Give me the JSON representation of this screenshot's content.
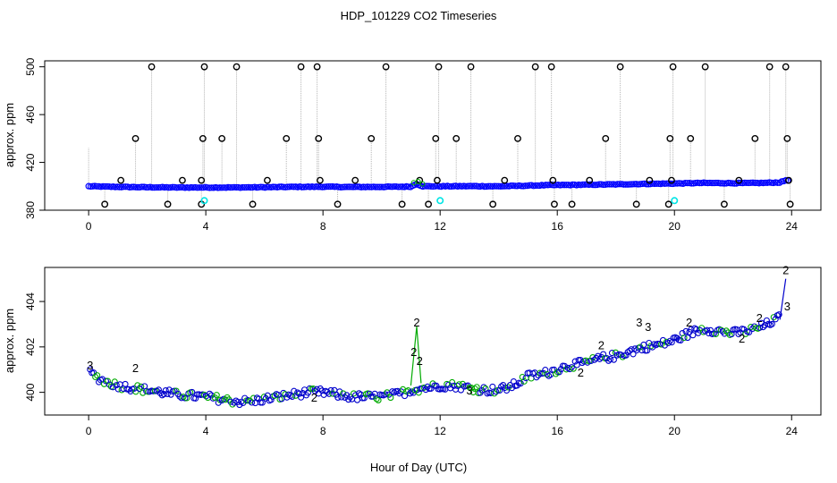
{
  "chart_data": [
    {
      "type": "scatter",
      "title": "HDP_101229  CO2 Timeseries",
      "xlabel": "",
      "ylabel": "approx. ppm",
      "xlim": [
        -1.5,
        25
      ],
      "ylim": [
        380,
        505
      ],
      "x_ticks": [
        0,
        4,
        8,
        12,
        16,
        20,
        24
      ],
      "x_tick_labels": [
        "0",
        "4",
        "8",
        "12",
        "16",
        "20",
        "24"
      ],
      "y_ticks": [
        380,
        420,
        460,
        500
      ],
      "y_tick_labels": [
        "380",
        "420",
        "460",
        "500"
      ],
      "baseline": [
        [
          0,
          400
        ],
        [
          1,
          399.5
        ],
        [
          2,
          399.2
        ],
        [
          3,
          399
        ],
        [
          4,
          399
        ],
        [
          5,
          399
        ],
        [
          6,
          399.2
        ],
        [
          7,
          399.5
        ],
        [
          8,
          399.6
        ],
        [
          9,
          399.4
        ],
        [
          10,
          399.5
        ],
        [
          11,
          399.7
        ],
        [
          11.2,
          402
        ],
        [
          11.4,
          400
        ],
        [
          12,
          400
        ],
        [
          13,
          400.1
        ],
        [
          14,
          400
        ],
        [
          15,
          400.5
        ],
        [
          15.8,
          401
        ],
        [
          16,
          401
        ],
        [
          17,
          401.3
        ],
        [
          18,
          401.6
        ],
        [
          19,
          402
        ],
        [
          20,
          402.3
        ],
        [
          21,
          402.8
        ],
        [
          22,
          402.6
        ],
        [
          23,
          402.8
        ],
        [
          23.6,
          403.2
        ],
        [
          23.8,
          405
        ]
      ],
      "spikes": [
        [
          1.1,
          405
        ],
        [
          1.6,
          440
        ],
        [
          2.15,
          500
        ],
        [
          3.2,
          405
        ],
        [
          3.95,
          500
        ],
        [
          3.9,
          440
        ],
        [
          3.85,
          405
        ],
        [
          4.55,
          440
        ],
        [
          5.05,
          500
        ],
        [
          6.1,
          405
        ],
        [
          6.75,
          440
        ],
        [
          7.25,
          500
        ],
        [
          7.8,
          500
        ],
        [
          7.85,
          440
        ],
        [
          7.9,
          405
        ],
        [
          9.1,
          405
        ],
        [
          9.65,
          440
        ],
        [
          10.15,
          500
        ],
        [
          11.3,
          405
        ],
        [
          11.85,
          440
        ],
        [
          11.9,
          405
        ],
        [
          11.95,
          500
        ],
        [
          12.55,
          440
        ],
        [
          13.05,
          500
        ],
        [
          14.2,
          405
        ],
        [
          14.65,
          440
        ],
        [
          15.25,
          500
        ],
        [
          15.8,
          500
        ],
        [
          15.85,
          405
        ],
        [
          17.1,
          405
        ],
        [
          17.65,
          440
        ],
        [
          18.15,
          500
        ],
        [
          19.15,
          405
        ],
        [
          19.85,
          440
        ],
        [
          19.9,
          405
        ],
        [
          19.95,
          500
        ],
        [
          20.55,
          440
        ],
        [
          21.05,
          500
        ],
        [
          22.2,
          405
        ],
        [
          22.75,
          440
        ],
        [
          23.25,
          500
        ],
        [
          23.8,
          500
        ],
        [
          23.85,
          440
        ],
        [
          23.9,
          405
        ]
      ],
      "lows": [
        0.55,
        2.7,
        3.85,
        5.6,
        8.5,
        10.7,
        11.6,
        13.8,
        15.9,
        16.5,
        18.7,
        19.8,
        21.7,
        23.95
      ],
      "cyan_points": [
        [
          3.95,
          388
        ],
        [
          12,
          388
        ],
        [
          20,
          388
        ]
      ],
      "series_colors": {
        "baseline": "#0000ff",
        "spike_marker": "#000000",
        "highlight": "#00e5e5",
        "connector": "#b5b5b5",
        "secondary": "#00aa00"
      }
    },
    {
      "type": "scatter",
      "title": "",
      "xlabel": "Hour of Day (UTC)",
      "ylabel": "approx. ppm",
      "xlim": [
        -1.5,
        25
      ],
      "ylim": [
        399,
        405.5
      ],
      "x_ticks": [
        0,
        4,
        8,
        12,
        16,
        20,
        24
      ],
      "x_tick_labels": [
        "0",
        "4",
        "8",
        "12",
        "16",
        "20",
        "24"
      ],
      "y_ticks": [
        400,
        402,
        404
      ],
      "y_tick_labels": [
        "400",
        "402",
        "404"
      ],
      "trend": [
        [
          0,
          400.9
        ],
        [
          0.5,
          400.5
        ],
        [
          1,
          400.3
        ],
        [
          1.5,
          400.2
        ],
        [
          2,
          400.1
        ],
        [
          2.5,
          400
        ],
        [
          3,
          399.9
        ],
        [
          3.5,
          399.85
        ],
        [
          4,
          399.8
        ],
        [
          4.5,
          399.7
        ],
        [
          5,
          399.6
        ],
        [
          5.5,
          399.6
        ],
        [
          6,
          399.7
        ],
        [
          6.5,
          399.8
        ],
        [
          7,
          399.9
        ],
        [
          7.5,
          400
        ],
        [
          8,
          400
        ],
        [
          8.5,
          399.9
        ],
        [
          9,
          399.8
        ],
        [
          9.5,
          399.8
        ],
        [
          10,
          399.8
        ],
        [
          10.5,
          399.9
        ],
        [
          11,
          400.1
        ],
        [
          11.5,
          400.2
        ],
        [
          12,
          400.3
        ],
        [
          12.5,
          400.3
        ],
        [
          13,
          400.2
        ],
        [
          13.5,
          400.1
        ],
        [
          14,
          400.1
        ],
        [
          14.5,
          400.3
        ],
        [
          15,
          400.7
        ],
        [
          15.5,
          400.8
        ],
        [
          16,
          401
        ],
        [
          16.5,
          401.2
        ],
        [
          17,
          401.3
        ],
        [
          17.5,
          401.5
        ],
        [
          18,
          401.6
        ],
        [
          18.5,
          401.8
        ],
        [
          19,
          402
        ],
        [
          19.5,
          402.1
        ],
        [
          20,
          402.3
        ],
        [
          20.5,
          402.6
        ],
        [
          21,
          402.8
        ],
        [
          21.5,
          402.7
        ],
        [
          22,
          402.6
        ],
        [
          22.5,
          402.7
        ],
        [
          23,
          402.9
        ],
        [
          23.6,
          403.3
        ]
      ],
      "spike_labels": [
        {
          "x": 1.6,
          "y": 400.9,
          "text": "2",
          "color": "green"
        },
        {
          "x": 11.2,
          "y": 402.9,
          "text": "2",
          "color": "green"
        },
        {
          "x": 11.1,
          "y": 401.6,
          "text": "2",
          "color": "green"
        },
        {
          "x": 11.3,
          "y": 401.2,
          "text": "2",
          "color": "green"
        },
        {
          "x": 18.8,
          "y": 402.9,
          "text": "3",
          "color": "blue"
        },
        {
          "x": 19.1,
          "y": 402.7,
          "text": "3",
          "color": "blue"
        },
        {
          "x": 17.5,
          "y": 401.9,
          "text": "2",
          "color": "green"
        },
        {
          "x": 20.5,
          "y": 402.9,
          "text": "2",
          "color": "green"
        },
        {
          "x": 22.3,
          "y": 402.2,
          "text": "2",
          "color": "green"
        },
        {
          "x": 22.9,
          "y": 403.1,
          "text": "2",
          "color": "green"
        },
        {
          "x": 23.8,
          "y": 405.2,
          "text": "2",
          "color": "green"
        },
        {
          "x": 23.85,
          "y": 403.6,
          "text": "3",
          "color": "blue"
        },
        {
          "x": 0.05,
          "y": 401,
          "text": "3",
          "color": "blue"
        },
        {
          "x": 13.0,
          "y": 399.9,
          "text": "3",
          "color": "blue"
        },
        {
          "x": 16.8,
          "y": 400.7,
          "text": "2",
          "color": "green"
        },
        {
          "x": 7.7,
          "y": 399.6,
          "text": "2",
          "color": "green"
        }
      ],
      "series_colors": {
        "primary": "#0000cc",
        "secondary": "#00aa00"
      }
    }
  ]
}
